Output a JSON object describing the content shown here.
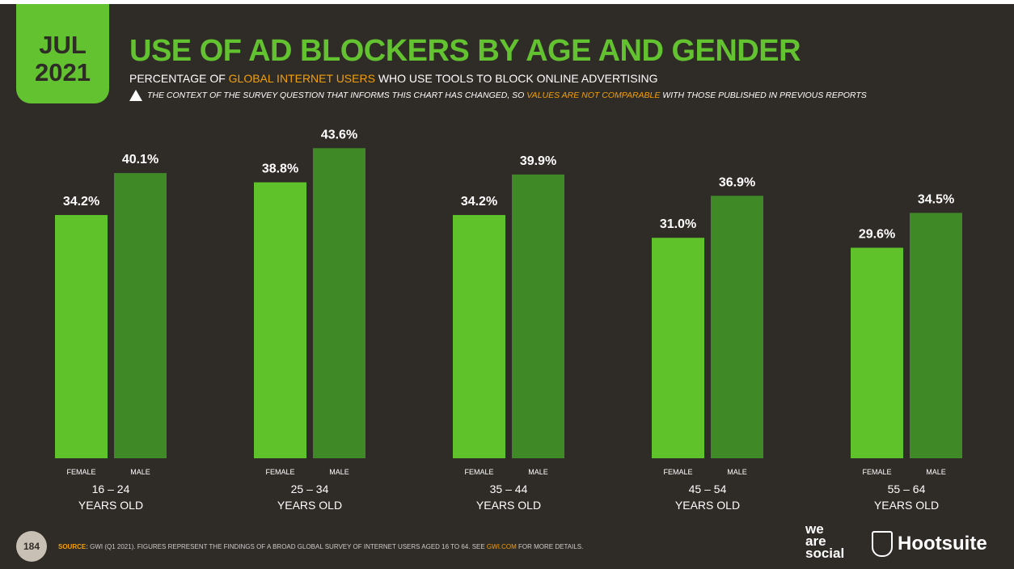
{
  "badge": {
    "month": "JUL",
    "year": "2021"
  },
  "title": "USE OF AD BLOCKERS BY AGE AND GENDER",
  "subtitle": {
    "pre": "PERCENTAGE OF ",
    "highlight": "GLOBAL INTERNET USERS",
    "post": " WHO USE TOOLS TO BLOCK ONLINE ADVERTISING"
  },
  "note": {
    "pre": "THE CONTEXT OF THE SURVEY QUESTION THAT INFORMS THIS CHART HAS CHANGED, SO ",
    "highlight": "VALUES ARE NOT COMPARABLE",
    "post": " WITH THOSE PUBLISHED IN PREVIOUS REPORTS"
  },
  "footer": {
    "page": "184",
    "source_label": "SOURCE:",
    "source_text": " GWI (Q1 2021). FIGURES REPRESENT THE FINDINGS OF A BROAD GLOBAL SURVEY OF INTERNET USERS AGED 16 TO 64. SEE ",
    "source_link": "GWI.COM",
    "source_end": " FOR MORE DETAILS."
  },
  "logos": {
    "we_are_social": "we are social",
    "hootsuite": "Hootsuite"
  },
  "colors": {
    "female": "#5fc22a",
    "male": "#3f8a27",
    "accent": "#63c22f",
    "highlight": "#f2a007",
    "background": "#2f2b27"
  },
  "chart_data": {
    "type": "bar",
    "categories": [
      [
        "16 – 24",
        "YEARS OLD"
      ],
      [
        "25 – 34",
        "YEARS OLD"
      ],
      [
        "35 – 44",
        "YEARS OLD"
      ],
      [
        "45 – 54",
        "YEARS OLD"
      ],
      [
        "55 – 64",
        "YEARS OLD"
      ]
    ],
    "series": [
      {
        "name": "FEMALE",
        "values": [
          34.2,
          38.8,
          34.2,
          31.0,
          29.6
        ],
        "labels": [
          "34.2%",
          "38.8%",
          "34.2%",
          "31.0%",
          "29.6%"
        ]
      },
      {
        "name": "MALE",
        "values": [
          40.1,
          43.6,
          39.9,
          36.9,
          34.5
        ],
        "labels": [
          "40.1%",
          "43.6%",
          "39.9%",
          "36.9%",
          "34.5%"
        ]
      }
    ],
    "ylim": [
      0,
      50
    ],
    "grid": false
  }
}
